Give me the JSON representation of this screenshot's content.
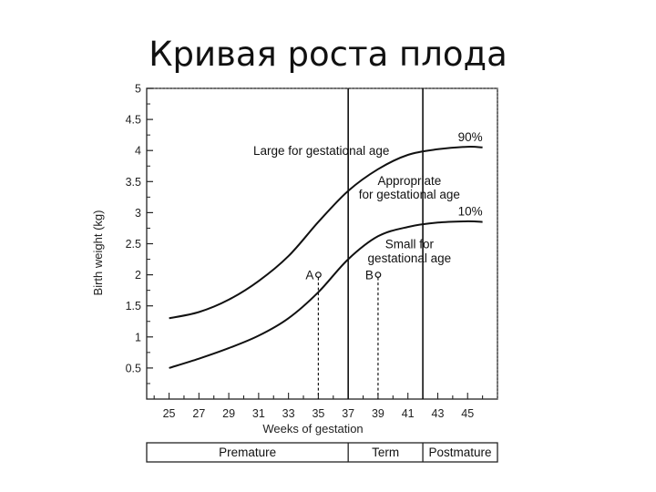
{
  "page": {
    "title": "Кривая роста плода"
  },
  "chart_data": {
    "type": "line",
    "xlabel": "Weeks of gestation",
    "ylabel": "Birth weight (kg)",
    "xlim": [
      23.5,
      47
    ],
    "ylim": [
      0,
      5
    ],
    "x_ticks": [
      25,
      27,
      29,
      31,
      33,
      35,
      37,
      39,
      41,
      43,
      45
    ],
    "y_ticks": [
      0.5,
      1,
      1.5,
      2,
      2.5,
      3,
      3.5,
      4,
      4.5,
      5
    ],
    "y_tick_labels": [
      "0.5",
      "1",
      "1.5",
      "2",
      "2.5",
      "3",
      "3.5",
      "4",
      "4.5",
      "5"
    ],
    "series": [
      {
        "name": "90%",
        "x": [
          25,
          27,
          29,
          31,
          33,
          35,
          37,
          39,
          41,
          43,
          45,
          46
        ],
        "y": [
          1.3,
          1.4,
          1.6,
          1.9,
          2.3,
          2.85,
          3.35,
          3.7,
          3.93,
          4.02,
          4.06,
          4.05
        ]
      },
      {
        "name": "10%",
        "x": [
          25,
          27,
          29,
          31,
          33,
          35,
          37,
          39,
          41,
          43,
          45,
          46
        ],
        "y": [
          0.5,
          0.65,
          0.82,
          1.02,
          1.3,
          1.72,
          2.25,
          2.62,
          2.77,
          2.84,
          2.86,
          2.85
        ]
      }
    ],
    "vlines": [
      37,
      42
    ],
    "annotations": [
      {
        "text": "Large for gestational age",
        "x": 35.2,
        "y": 4.0
      },
      {
        "text": "Appropriate",
        "x": 41.1,
        "y": 3.52
      },
      {
        "text": "for gestational age",
        "x": 41.1,
        "y": 3.3
      },
      {
        "text": "Small for",
        "x": 41.1,
        "y": 2.5
      },
      {
        "text": "gestational age",
        "x": 41.1,
        "y": 2.27
      }
    ],
    "points": [
      {
        "label": "A",
        "x": 35,
        "y": 2.0
      },
      {
        "label": "B",
        "x": 39,
        "y": 2.0
      }
    ],
    "periods": [
      {
        "label": "Premature",
        "from": 23.5,
        "to": 37
      },
      {
        "label": "Term",
        "from": 37,
        "to": 42
      },
      {
        "label": "Postmature",
        "from": 42,
        "to": 47
      }
    ]
  }
}
